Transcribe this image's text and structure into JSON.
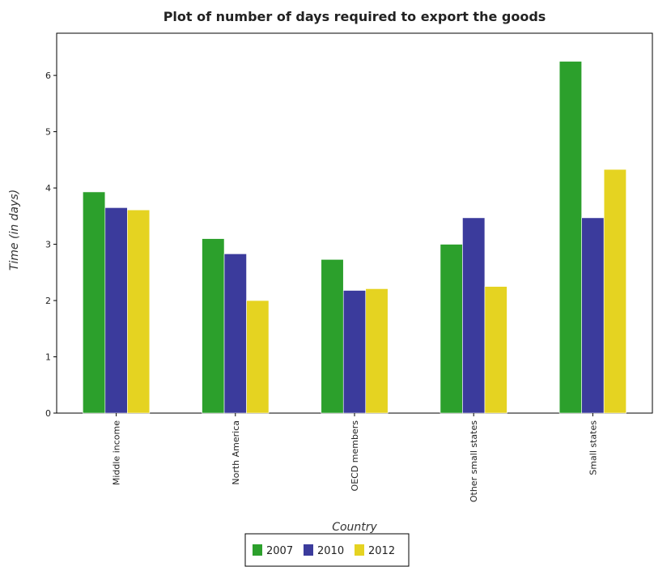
{
  "chart_data": {
    "type": "bar",
    "title": "Plot of number of days required to export the goods",
    "xlabel": "Country",
    "ylabel": "Time (in days)",
    "categories": [
      "Middle income",
      "North America",
      "OECD members",
      "Other small states",
      "Small states"
    ],
    "series": [
      {
        "name": "2007",
        "color": "#2ca02c",
        "values": [
          3.93,
          3.1,
          2.73,
          3.0,
          6.25
        ]
      },
      {
        "name": "2010",
        "color": "#3b3b9c",
        "values": [
          3.65,
          2.83,
          2.18,
          3.47,
          3.47
        ]
      },
      {
        "name": "2012",
        "color": "#e5d321",
        "values": [
          3.61,
          2.0,
          2.21,
          2.25,
          4.33
        ]
      }
    ],
    "ylim": [
      0,
      6.75
    ],
    "yticks": [
      "0",
      "1",
      "2",
      "3",
      "4",
      "5",
      "6"
    ],
    "grid": false,
    "legend_position": "bottom-center"
  }
}
